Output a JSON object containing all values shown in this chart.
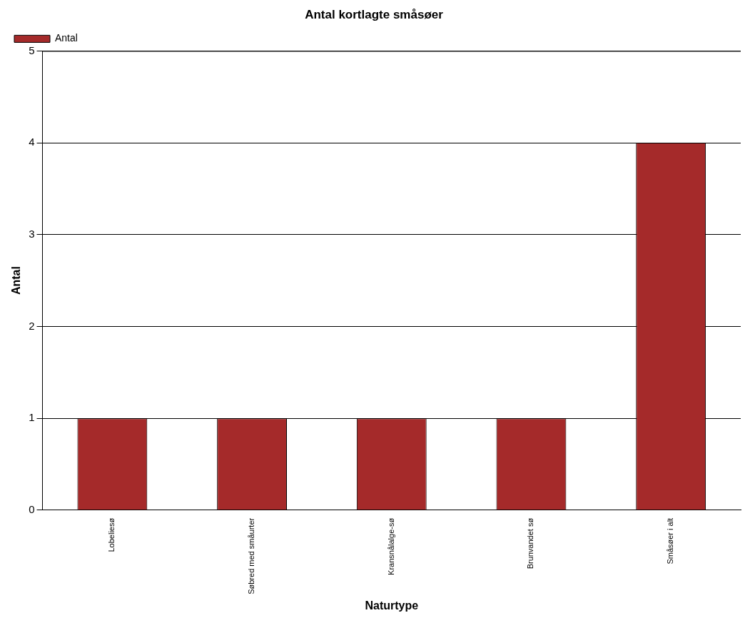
{
  "chart_data": {
    "type": "bar",
    "title": "Antal kortlagte småsøer",
    "xlabel": "Naturtype",
    "ylabel": "Antal",
    "categories": [
      "Lobeliesø",
      "Søbred med småurter",
      "Kransnålalge-sø",
      "Brunvandet sø",
      "Småsøer i alt"
    ],
    "series": [
      {
        "name": "Antal",
        "color": "#a52a2a",
        "values": [
          1,
          1,
          1,
          1,
          4
        ]
      }
    ],
    "ylim": [
      0,
      5
    ],
    "yticks": [
      0,
      1,
      2,
      3,
      4,
      5
    ],
    "grid": "y",
    "legend": "top left"
  }
}
